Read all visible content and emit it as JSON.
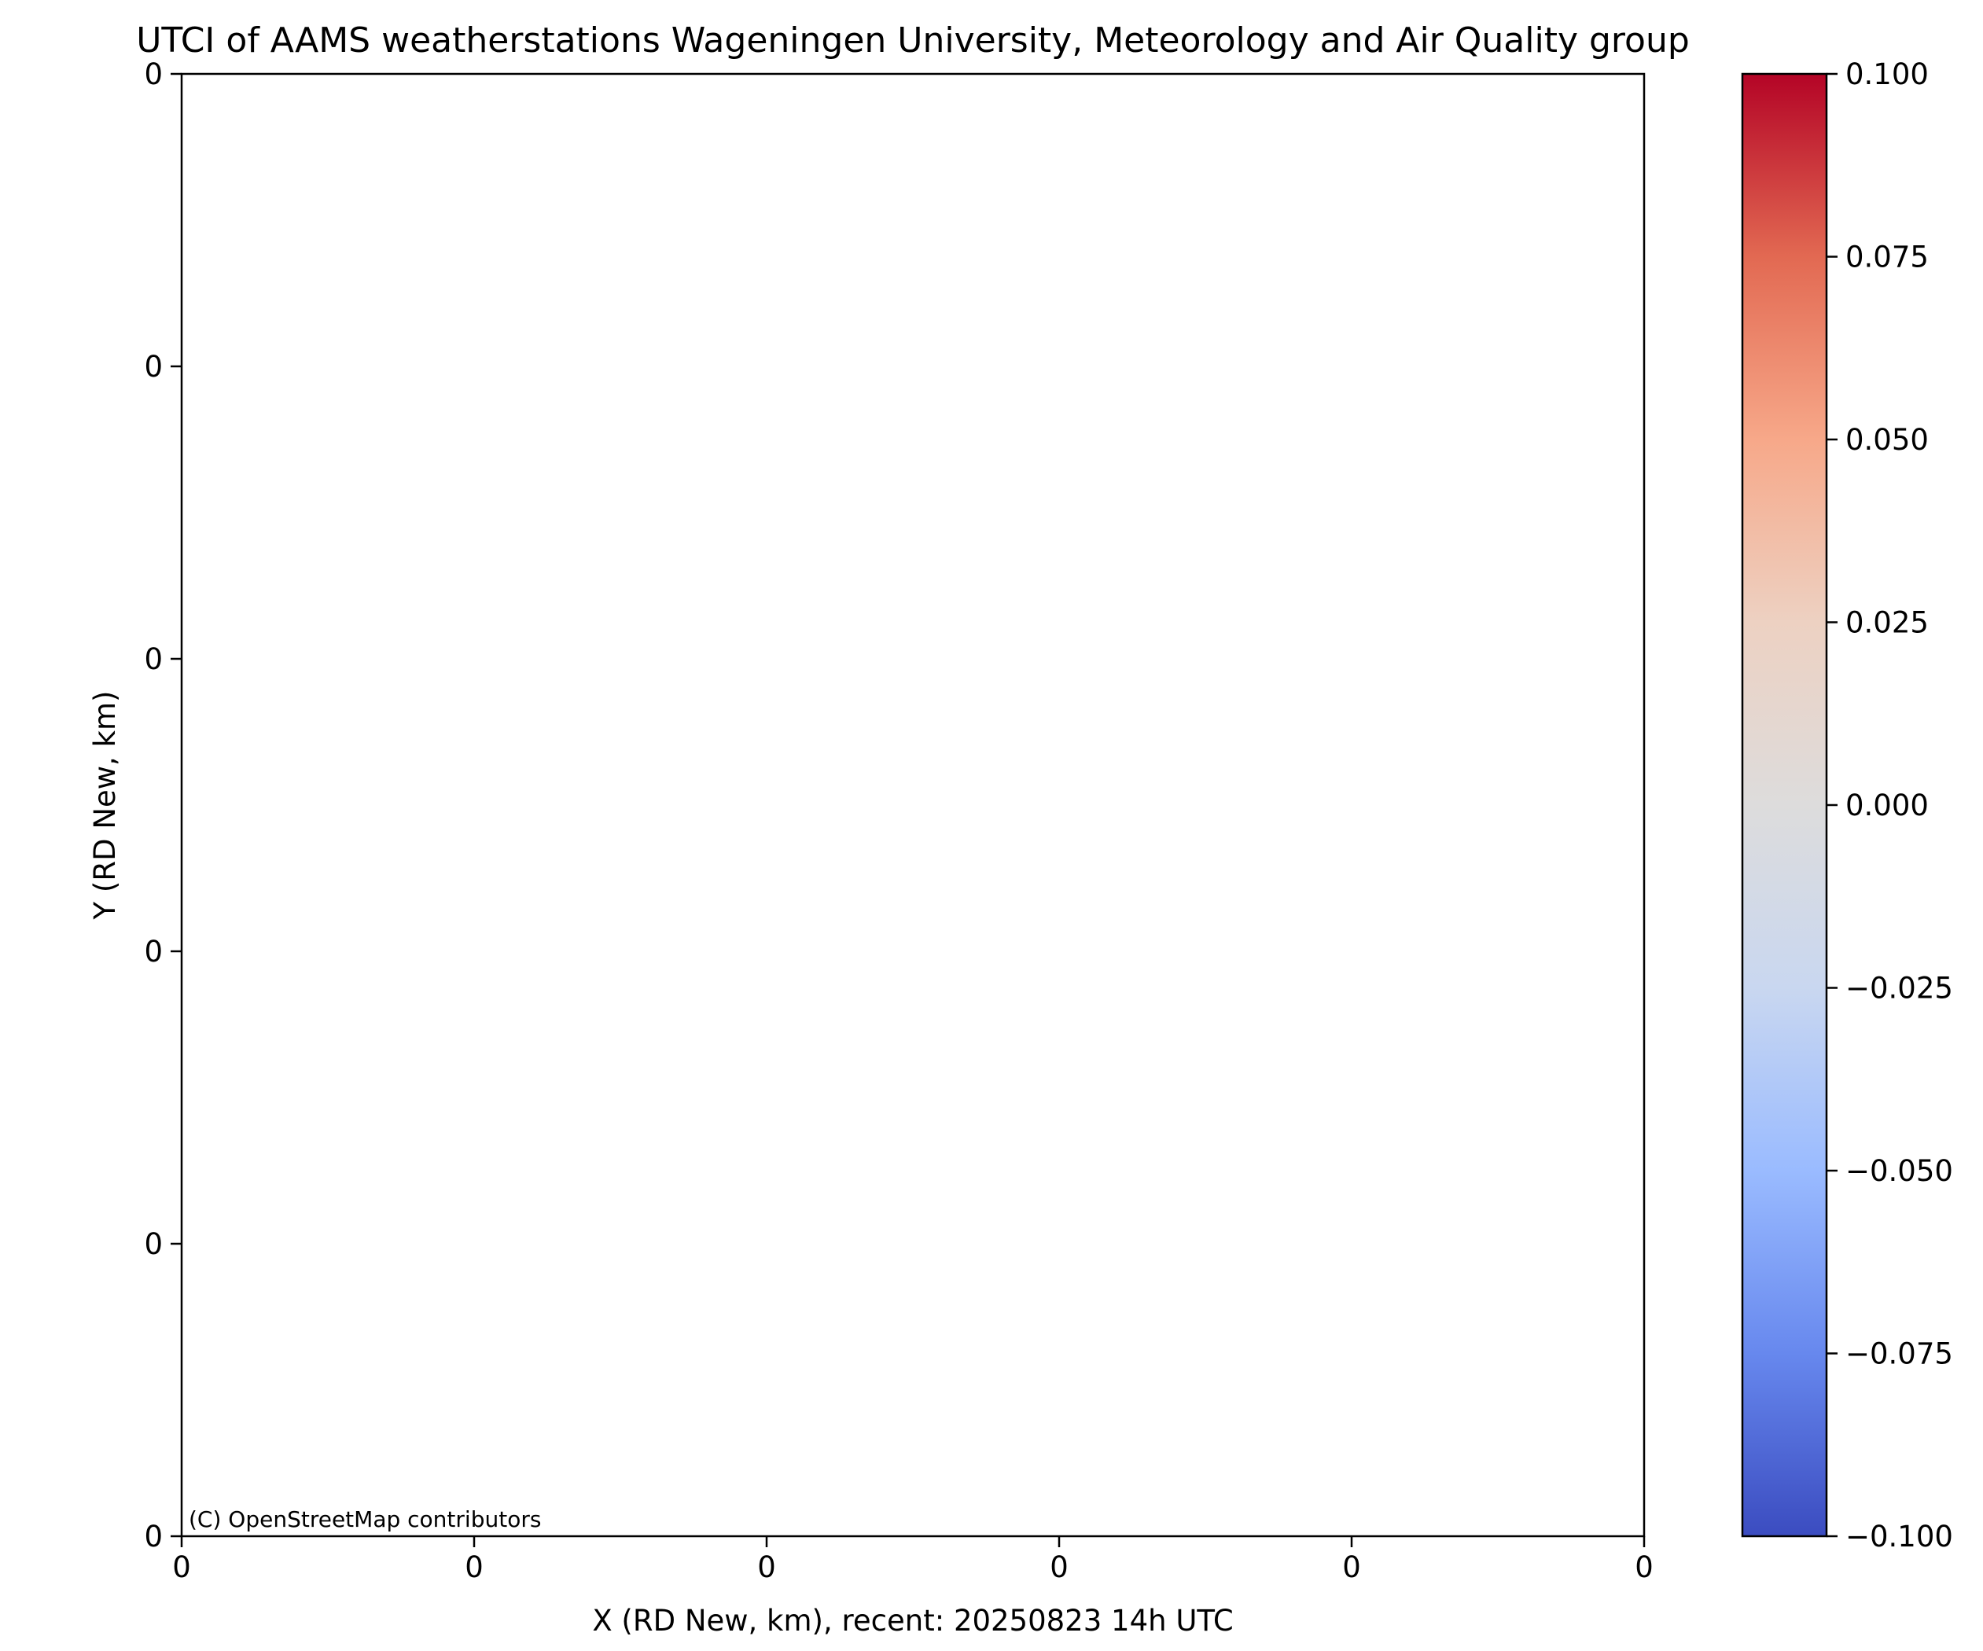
{
  "chart_data": [
    {
      "type": "scatter",
      "title": "UTCI of AAMS weatherstations Wageningen University, Meteorology and Air Quality group",
      "xlabel": "X (RD New, km), recent: 20250823 14h UTC",
      "ylabel": "Y (RD New, km)",
      "x_tick_labels": [
        "0",
        "0",
        "0",
        "0",
        "0",
        "0"
      ],
      "y_tick_labels": [
        "0",
        "0",
        "0",
        "0",
        "0",
        "0"
      ],
      "attribution": "(C) OpenStreetMap contributors",
      "series": [],
      "grid": false
    },
    {
      "type": "heatmap",
      "colormap": "coolwarm",
      "colorbar": {
        "range": [
          -0.1,
          0.1
        ],
        "ticks": [
          0.1,
          0.075,
          0.05,
          0.025,
          0.0,
          -0.025,
          -0.05,
          -0.075,
          -0.1
        ],
        "tick_labels": [
          "0.100",
          "0.075",
          "0.050",
          "0.025",
          "0.000",
          "−0.025",
          "−0.050",
          "−0.075",
          "−0.100"
        ],
        "colors": [
          "#3b4cc0",
          "#6788ee",
          "#9abbff",
          "#c9d7f0",
          "#dddcdc",
          "#edd1c2",
          "#f7a889",
          "#e26952",
          "#b40426"
        ]
      }
    }
  ]
}
